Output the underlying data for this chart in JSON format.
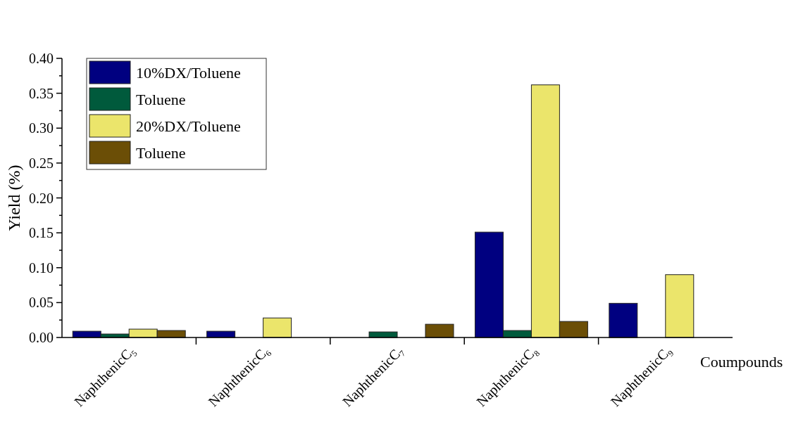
{
  "chart_data": {
    "type": "bar",
    "xlabel": "Coumpounds",
    "ylabel": "Yield (%)",
    "categories": [
      "NaphthenicC₅",
      "NaphthenicC₆",
      "NaphthenicC₇",
      "NaphthenicC₈",
      "NaphthenicC₉"
    ],
    "series": [
      {
        "name": "10%DX/Toluene",
        "color": "#000080",
        "values": [
          0.009,
          0.009,
          null,
          0.151,
          0.049
        ]
      },
      {
        "name": "Toluene",
        "color": "#005a3c",
        "values": [
          0.005,
          null,
          0.008,
          0.01,
          null
        ]
      },
      {
        "name": "20%DX/Toluene",
        "color": "#ebe56b",
        "values": [
          0.012,
          0.028,
          null,
          0.362,
          0.09
        ]
      },
      {
        "name": "Toluene",
        "color": "#6b4e06",
        "values": [
          0.01,
          null,
          0.019,
          0.023,
          null
        ]
      }
    ],
    "ylim": [
      0,
      0.4
    ],
    "yticks": [
      {
        "value": 0,
        "label": "0.00"
      },
      {
        "value": 0.025,
        "label": null
      },
      {
        "value": 0.05,
        "label": "0.05"
      },
      {
        "value": 0.075,
        "label": null
      },
      {
        "value": 0.1,
        "label": "0.10"
      },
      {
        "value": 0.125,
        "label": null
      },
      {
        "value": 0.15,
        "label": "0.15"
      },
      {
        "value": 0.175,
        "label": null
      },
      {
        "value": 0.2,
        "label": "0.20"
      },
      {
        "value": 0.225,
        "label": null
      },
      {
        "value": 0.25,
        "label": "0.25"
      },
      {
        "value": 0.275,
        "label": null
      },
      {
        "value": 0.3,
        "label": "0.30"
      },
      {
        "value": 0.325,
        "label": null
      },
      {
        "value": 0.35,
        "label": "0.35"
      },
      {
        "value": 0.375,
        "label": null
      },
      {
        "value": 0.4,
        "label": "0.40"
      }
    ],
    "grid": false,
    "legend": "top left"
  }
}
